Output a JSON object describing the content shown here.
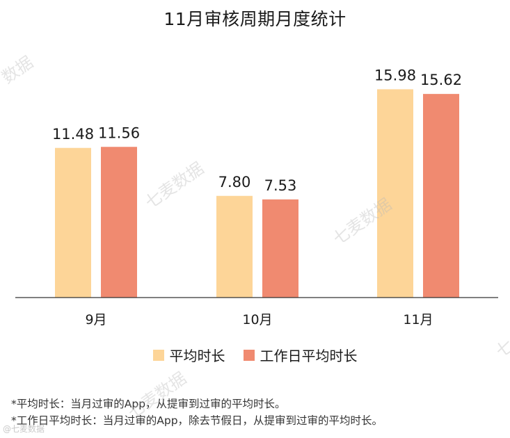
{
  "chart_data": {
    "type": "bar",
    "title": "11月审核周期月度统计",
    "categories": [
      "9月",
      "10月",
      "11月"
    ],
    "series": [
      {
        "name": "平均时长",
        "values": [
          11.48,
          7.8,
          15.98
        ],
        "color": "#FDD598"
      },
      {
        "name": "工作日平均时长",
        "values": [
          11.56,
          7.53,
          15.62
        ],
        "color": "#F08A70"
      }
    ],
    "value_labels": [
      [
        "11.48",
        "7.80",
        "15.98"
      ],
      [
        "11.56",
        "7.53",
        "15.62"
      ]
    ],
    "ylim": [
      0,
      18
    ],
    "grid": false,
    "legend_position": "bottom-center"
  },
  "notes": [
    "*平均时长：当月过审的App，从提审到过审的平均时长。",
    "*工作日平均时长：当月过审的App，除去节假日，从提审到过审的平均时长。"
  ],
  "watermarks": [
    "数据",
    "七麦数据",
    "七麦数据",
    "七麦数据",
    "七"
  ],
  "source_mark": "@七麦数据"
}
